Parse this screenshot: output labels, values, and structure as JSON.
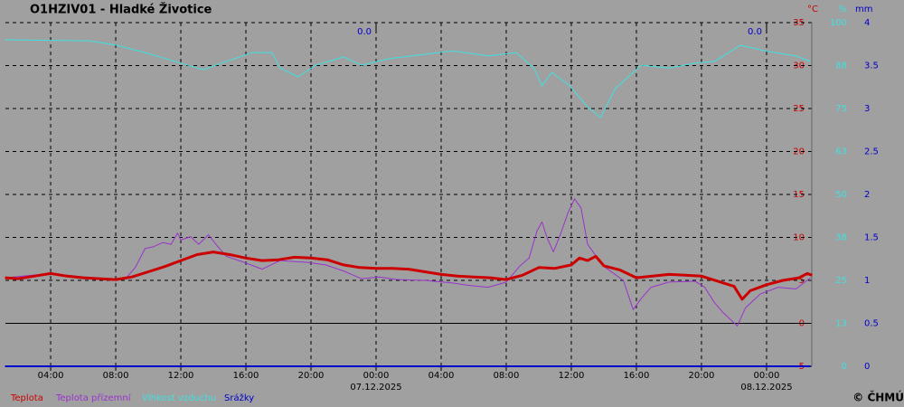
{
  "chart_data": {
    "type": "line",
    "title": "O1HZIV01 - Hladké Životice",
    "copyright": "© ČHMÚ",
    "background": "#a0a0a0",
    "grid": true,
    "y_label": "°C",
    "y_color": "#cc0000",
    "y2_label": "%",
    "y2_color": "#40e0e0",
    "y3_label": "mm",
    "y3_color": "#0000cc",
    "xlim": [
      1.22,
      50.78
    ],
    "xticks": [
      {
        "value": 4,
        "label": "04:00"
      },
      {
        "value": 8,
        "label": "08:00"
      },
      {
        "value": 12,
        "label": "12:00"
      },
      {
        "value": 16,
        "label": "16:00"
      },
      {
        "value": 20,
        "label": "20:00"
      },
      {
        "value": 24,
        "label": "00:00",
        "date": "07.12.2025"
      },
      {
        "value": 28,
        "label": "04:00"
      },
      {
        "value": 32,
        "label": "08:00"
      },
      {
        "value": 36,
        "label": "12:00"
      },
      {
        "value": 40,
        "label": "16:00"
      },
      {
        "value": 44,
        "label": "20:00"
      },
      {
        "value": 48,
        "label": "00:00",
        "date": "08.12.2025"
      }
    ],
    "ylim": [
      -5,
      35
    ],
    "yticks": [
      -5,
      0,
      5,
      10,
      15,
      20,
      25,
      30,
      35
    ],
    "y2lim": [
      0,
      100
    ],
    "y2ticks": [
      0,
      {
        "value": 12.5,
        "label": "13"
      },
      25,
      {
        "value": 37.5,
        "label": "38"
      },
      50,
      {
        "value": 62.5,
        "label": "63"
      },
      75,
      {
        "value": 87.5,
        "label": "88"
      },
      100
    ],
    "y3lim": [
      0,
      4
    ],
    "y3ticks": [
      0,
      0.5,
      1,
      1.5,
      2,
      2.5,
      3,
      3.5,
      4
    ],
    "annotations": [
      {
        "x": 24,
        "text": "0.0"
      },
      {
        "x": 48,
        "text": "0.0"
      }
    ],
    "series": [
      {
        "name": "Teplota",
        "color": "#cc0000",
        "width": 3,
        "axis": "y",
        "x": [
          1.2,
          2,
          3,
          4,
          5,
          6,
          7,
          8,
          9,
          10,
          11,
          12,
          13,
          14,
          15,
          16,
          17,
          18,
          19,
          20,
          21,
          22,
          23,
          24,
          25,
          26,
          27,
          28,
          29,
          30,
          31,
          32,
          33,
          34,
          35,
          36,
          36.5,
          37,
          37.5,
          38,
          39,
          40,
          41,
          42,
          43,
          44,
          45,
          46,
          46.5,
          47,
          48,
          49,
          50,
          50.5,
          50.8
        ],
        "values": [
          5.3,
          5.2,
          5.5,
          5.8,
          5.5,
          5.3,
          5.2,
          5.1,
          5.4,
          6.0,
          6.6,
          7.3,
          8.0,
          8.3,
          8.0,
          7.6,
          7.3,
          7.4,
          7.7,
          7.6,
          7.4,
          6.8,
          6.5,
          6.4,
          6.4,
          6.3,
          6.0,
          5.7,
          5.5,
          5.4,
          5.3,
          5.1,
          5.6,
          6.5,
          6.4,
          6.8,
          7.6,
          7.3,
          7.8,
          6.7,
          6.2,
          5.3,
          5.5,
          5.7,
          5.6,
          5.5,
          4.9,
          4.3,
          2.8,
          3.8,
          4.5,
          5.0,
          5.3,
          5.8,
          5.6
        ]
      },
      {
        "name": "Teplota přízemní",
        "color": "#9933cc",
        "width": 1,
        "axis": "y",
        "x": [
          1.2,
          4,
          8,
          8.7,
          9.2,
          9.8,
          10.3,
          10.9,
          11.4,
          11.8,
          12,
          12.6,
          13.1,
          13.7,
          14.2,
          14.8,
          15.9,
          17,
          18.1,
          19.8,
          20.9,
          22,
          23.1,
          24.2,
          25.3,
          27,
          28.7,
          29.8,
          30.9,
          32,
          32.8,
          33.4,
          33.9,
          34.2,
          34.5,
          34.9,
          35.3,
          35.8,
          36.2,
          36.6,
          37,
          37.6,
          38.1,
          39.2,
          39.8,
          40.3,
          40.9,
          42,
          43.6,
          44.2,
          44.8,
          45.3,
          46.2,
          46.7,
          47.6,
          48.7,
          49.8,
          50.7
        ],
        "values": [
          5.3,
          5.8,
          5.0,
          5.4,
          6.5,
          8.7,
          8.9,
          9.4,
          9.2,
          10.5,
          9.7,
          10.1,
          9.2,
          10.3,
          9.1,
          7.8,
          7.1,
          6.3,
          7.3,
          7.1,
          6.8,
          6.1,
          5.2,
          5.4,
          5.1,
          5.0,
          4.7,
          4.4,
          4.2,
          4.8,
          6.6,
          7.6,
          10.8,
          11.8,
          10.0,
          8.3,
          10.2,
          12.9,
          14.5,
          13.4,
          9.2,
          7.6,
          6.5,
          5.0,
          1.6,
          2.9,
          4.2,
          4.8,
          4.9,
          4.2,
          2.4,
          1.3,
          -0.3,
          1.8,
          3.4,
          4.2,
          4.0,
          5.3
        ]
      },
      {
        "name": "Vlhkost vzduchu",
        "color": "#40e0e0",
        "width": 1,
        "axis": "y2",
        "x": [
          1.2,
          6.4,
          8.1,
          9.8,
          12,
          13.4,
          14.5,
          16.4,
          17.6,
          18.1,
          19.2,
          20.3,
          22,
          23.1,
          24.8,
          27,
          28.7,
          30.9,
          32.6,
          33.7,
          34.2,
          34.8,
          35.9,
          37,
          37.8,
          38.7,
          40.3,
          42,
          43.6,
          44.8,
          46.4,
          48.1,
          49.8,
          50.7
        ],
        "values": [
          95,
          94.7,
          93.4,
          91.3,
          88.2,
          86.3,
          88.2,
          91.3,
          91.3,
          86.8,
          84.2,
          87.6,
          90,
          87.6,
          89.5,
          90.8,
          91.8,
          90.3,
          91.3,
          86.8,
          81.6,
          85.5,
          81.6,
          75.5,
          72.4,
          80.8,
          87.6,
          86.8,
          88.2,
          88.7,
          93.4,
          91.6,
          90.3,
          88.7
        ]
      },
      {
        "name": "Srážky",
        "color": "#0000cc",
        "width": 2,
        "axis": "y3",
        "x": [
          1.2,
          50.7
        ],
        "values": [
          0,
          0
        ]
      }
    ]
  }
}
